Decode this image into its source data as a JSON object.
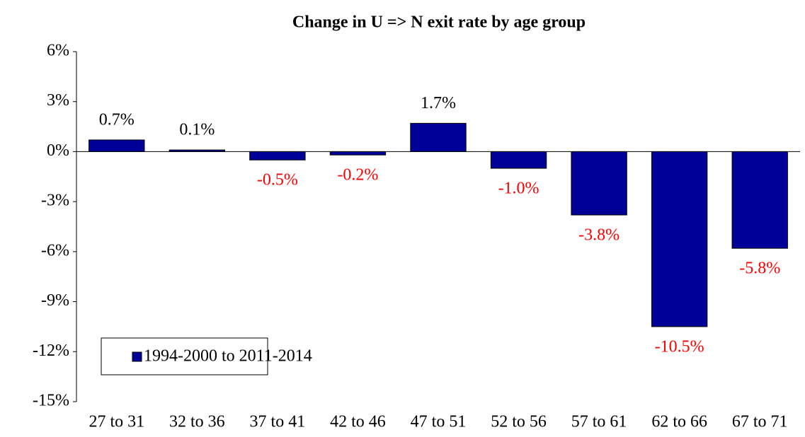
{
  "chart_data": {
    "type": "bar",
    "title": "Change in U => N exit rate by age group",
    "categories": [
      "27 to 31",
      "32 to 36",
      "37 to 41",
      "42 to 46",
      "47 to 51",
      "52 to 56",
      "57 to 61",
      "62 to 66",
      "67 to 71"
    ],
    "series": [
      {
        "name": "1994-2000 to 2011-2014",
        "color": "#000099",
        "values": [
          0.7,
          0.1,
          -0.5,
          -0.2,
          1.7,
          -1.0,
          -3.8,
          -10.5,
          -5.8
        ],
        "value_labels": [
          "0.7%",
          "0.1%",
          "-0.5%",
          "-0.2%",
          "1.7%",
          "-1.0%",
          "-3.8%",
          "-10.5%",
          "-5.8%"
        ]
      }
    ],
    "ylim": [
      -15,
      6
    ],
    "yticks": [
      {
        "value": -15,
        "label": "-15%"
      },
      {
        "value": -12,
        "label": "-12%"
      },
      {
        "value": -9,
        "label": "-9%"
      },
      {
        "value": -6,
        "label": "-6%"
      },
      {
        "value": -3,
        "label": "-3%"
      },
      {
        "value": 0,
        "label": "0%"
      },
      {
        "value": 3,
        "label": "3%"
      },
      {
        "value": 6,
        "label": "6%"
      }
    ],
    "grid": false,
    "legend": "lower left",
    "value_label_color": "#000000",
    "negative_value_label_color": "#ff0000"
  }
}
